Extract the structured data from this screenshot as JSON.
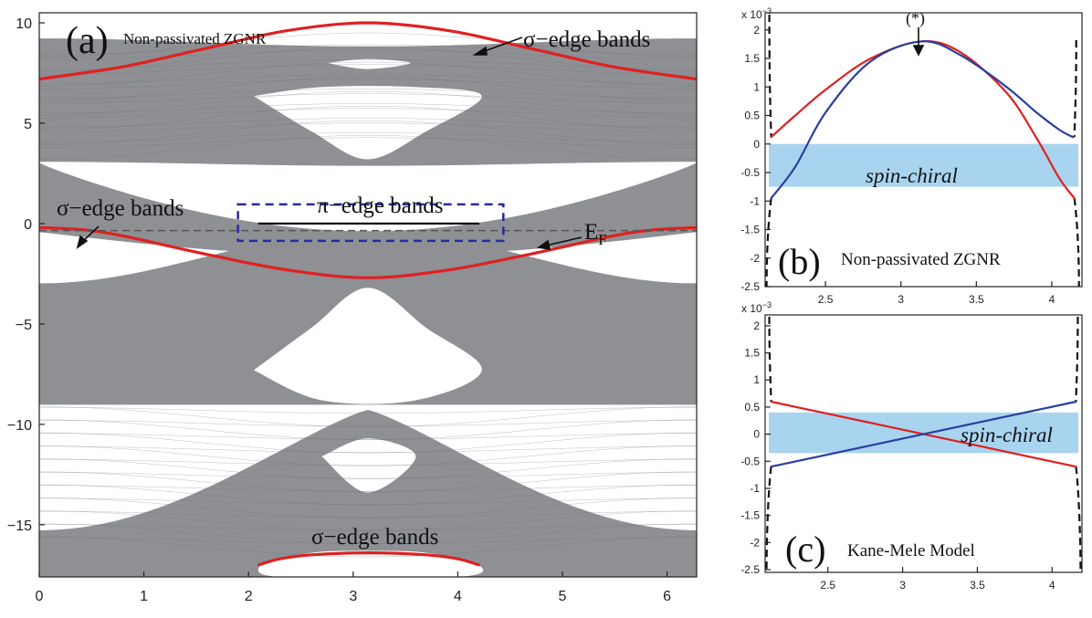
{
  "chart_data": [
    {
      "panel": "a",
      "type": "line",
      "title": "Non-passivated ZGNR",
      "panel_label": "(a)",
      "xlim": [
        0,
        6.283
      ],
      "ylim": [
        -17.6,
        10.5
      ],
      "x_ticks": [
        0,
        1,
        2,
        3,
        4,
        5,
        6
      ],
      "y_ticks": [
        10,
        5,
        0,
        -5,
        -10,
        -15
      ],
      "y_tick_labels": [
        "10",
        "5",
        "0",
        "−5",
        "−10",
        "−15"
      ],
      "fermi_level": -0.35,
      "fermi_label": "E",
      "fermi_label_sub": "F",
      "series": [
        {
          "name": "σ−edge bands",
          "color": "#e02020",
          "x": [
            0,
            0.785,
            1.571,
            2.356,
            3.1416,
            3.927,
            4.712,
            5.498,
            6.283
          ],
          "values": [
            7.2,
            7.8,
            8.7,
            9.6,
            10.0,
            9.6,
            8.7,
            7.8,
            7.2
          ]
        },
        {
          "name": "σ−edge bands",
          "color": "#e02020",
          "x": [
            0,
            0.4,
            0.785,
            1.571,
            2.356,
            3.1416,
            3.927,
            4.712,
            5.498,
            5.9,
            6.283
          ],
          "values": [
            -0.2,
            -0.3,
            -0.6,
            -1.5,
            -2.3,
            -2.7,
            -2.3,
            -1.5,
            -0.6,
            -0.3,
            -0.2
          ]
        },
        {
          "name": "σ−edge bands",
          "color": "#e02020",
          "x": [
            2.1,
            2.3,
            2.6,
            3.1416,
            3.7,
            4.0,
            4.2
          ],
          "values": [
            -17.0,
            -16.7,
            -16.5,
            -16.4,
            -16.5,
            -16.7,
            -17.0
          ]
        },
        {
          "name": "π−edge bands",
          "color": "#111111",
          "x": [
            2.1,
            4.2
          ],
          "values": [
            0.0,
            0.0
          ]
        }
      ],
      "annotations": [
        "σ−edge bands",
        "σ−edge bands",
        "π−edge bands",
        "σ−edge bands"
      ]
    },
    {
      "panel": "b",
      "type": "line",
      "title": "Non-passivated ZGNR",
      "panel_label": "(b)",
      "y_multiplier": "x 10",
      "y_multiplier_exp": "−3",
      "xlim": [
        2.1,
        4.2
      ],
      "ylim": [
        -2.5,
        2.3
      ],
      "x_ticks": [
        2.5,
        3,
        3.5,
        4
      ],
      "x_tick_labels": [
        "2.5",
        "3",
        "3.5",
        "4"
      ],
      "y_ticks": [
        2,
        1.5,
        1,
        0.5,
        0,
        -0.5,
        -1,
        -1.5,
        -2,
        -2.5
      ],
      "y_tick_labels": [
        "2",
        "1.5",
        "1",
        "0.5",
        "0",
        "-0.5",
        "-1",
        "-1.5",
        "-2",
        "-2.5"
      ],
      "shaded_band": {
        "label": "spin-chiral",
        "y": [
          -0.75,
          0
        ],
        "color": "#a8d4f0"
      },
      "star_label": "(*)",
      "series": [
        {
          "color": "#e02020",
          "x": [
            2.14,
            2.3,
            2.5,
            2.8,
            3.14,
            3.4,
            3.7,
            3.9,
            4.05,
            4.15
          ],
          "values": [
            0.12,
            0.5,
            0.95,
            1.5,
            1.8,
            1.6,
            0.9,
            0.1,
            -0.6,
            -0.95
          ]
        },
        {
          "color": "#2a3f9e",
          "x": [
            2.14,
            2.3,
            2.5,
            2.8,
            3.14,
            3.4,
            3.7,
            3.9,
            4.05,
            4.14
          ],
          "values": [
            -0.95,
            -0.4,
            0.55,
            1.45,
            1.8,
            1.55,
            1.0,
            0.55,
            0.25,
            0.12
          ]
        }
      ]
    },
    {
      "panel": "c",
      "type": "line",
      "title": "Kane-Mele Model",
      "panel_label": "(c)",
      "y_multiplier": "x 10",
      "y_multiplier_exp": "−3",
      "xlim": [
        2.08,
        4.2
      ],
      "ylim": [
        -2.55,
        2.2
      ],
      "x_ticks": [
        2.5,
        3,
        3.5,
        4
      ],
      "x_tick_labels": [
        "2.5",
        "3",
        "3.5",
        "4"
      ],
      "y_ticks": [
        2,
        1.5,
        1,
        0.5,
        0,
        -0.5,
        -1,
        -1.5,
        -2,
        -2.5
      ],
      "y_tick_labels": [
        "2",
        "1.5",
        "1",
        "0.5",
        "0",
        "-0.5",
        "-1",
        "-1.5",
        "-2",
        "-2.5"
      ],
      "shaded_band": {
        "label": "spin-chiral",
        "y": [
          -0.35,
          0.4
        ],
        "color": "#a8d4f0"
      },
      "series": [
        {
          "color": "#e02020",
          "x": [
            2.12,
            4.16
          ],
          "values": [
            0.6,
            -0.6
          ]
        },
        {
          "color": "#2a3f9e",
          "x": [
            2.12,
            4.16
          ],
          "values": [
            -0.6,
            0.6
          ]
        }
      ]
    }
  ]
}
